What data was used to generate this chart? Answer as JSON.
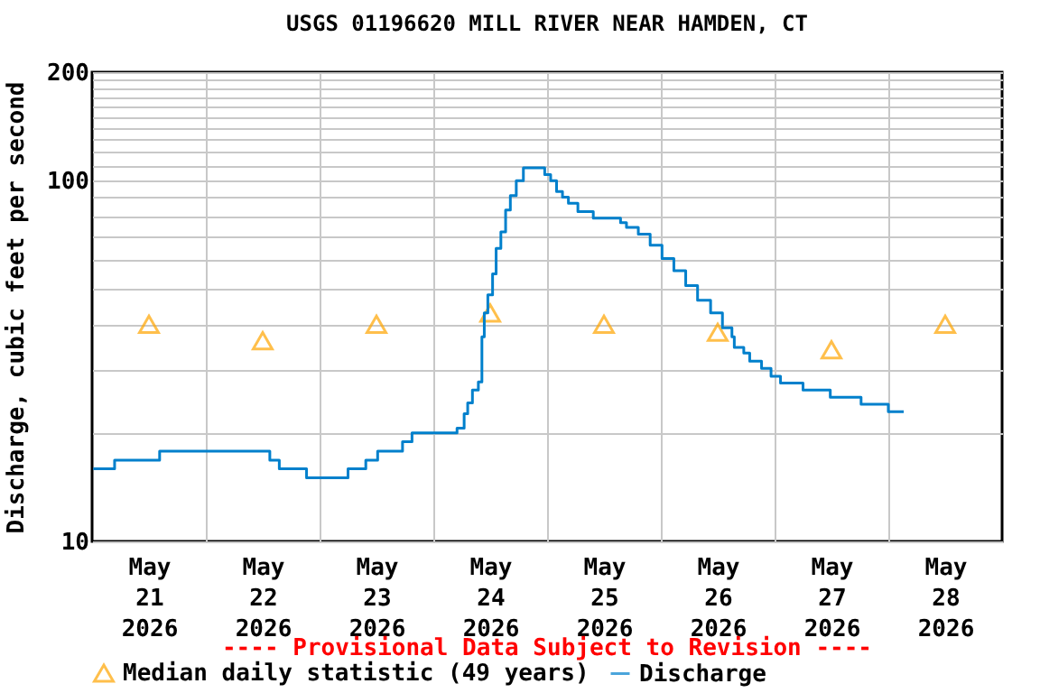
{
  "chart_data": {
    "type": "step",
    "title": "USGS 01196620 MILL RIVER NEAR HAMDEN, CT",
    "ylabel": "Discharge, cubic feet per second",
    "annotations": [
      "---- Provisional Data Subject to Revision ----"
    ],
    "log": "y",
    "grid": true,
    "legend": "bottom",
    "ylim": [
      10,
      200
    ],
    "yticks": [
      10,
      {
        "value": 20,
        "label": null
      },
      {
        "value": 30,
        "label": null
      },
      {
        "value": 40,
        "label": null
      },
      {
        "value": 50,
        "label": null
      },
      {
        "value": 60,
        "label": null
      },
      {
        "value": 70,
        "label": null
      },
      {
        "value": 80,
        "label": null
      },
      {
        "value": 90,
        "label": null
      },
      100,
      {
        "value": 110,
        "label": null
      },
      {
        "value": 120,
        "label": null
      },
      {
        "value": 130,
        "label": null
      },
      {
        "value": 140,
        "label": null
      },
      {
        "value": 150,
        "label": null
      },
      {
        "value": 160,
        "label": null
      },
      {
        "value": 170,
        "label": null
      },
      {
        "value": 180,
        "label": null
      },
      {
        "value": 190,
        "label": null
      },
      200
    ],
    "xlim": [
      "2026-05-21T00:00",
      "2026-05-29T00:00"
    ],
    "xticks": [
      {
        "value": "2026-05-21T12:00",
        "label": "May 21 2026"
      },
      {
        "value": "2026-05-22T00:00",
        "label": null
      },
      {
        "value": "2026-05-22T12:00",
        "label": "May 22 2026"
      },
      {
        "value": "2026-05-23T00:00",
        "label": null
      },
      {
        "value": "2026-05-23T12:00",
        "label": "May 23 2026"
      },
      {
        "value": "2026-05-24T00:00",
        "label": null
      },
      {
        "value": "2026-05-24T12:00",
        "label": "May 24 2026"
      },
      {
        "value": "2026-05-25T00:00",
        "label": null
      },
      {
        "value": "2026-05-25T12:00",
        "label": "May 25 2026"
      },
      {
        "value": "2026-05-26T00:00",
        "label": null
      },
      {
        "value": "2026-05-26T12:00",
        "label": "May 26 2026"
      },
      {
        "value": "2026-05-27T00:00",
        "label": null
      },
      {
        "value": "2026-05-27T12:00",
        "label": "May 27 2026"
      },
      {
        "value": "2026-05-28T00:00",
        "label": null
      },
      {
        "value": "2026-05-28T12:00",
        "label": "May 28 2026"
      }
    ],
    "series": [
      {
        "name": "Median daily statistic (49 years)",
        "type": "scatter",
        "marker": "triangle",
        "color": "#ffa500",
        "x": [
          "2026-05-21T12:00",
          "2026-05-22T12:00",
          "2026-05-23T12:00",
          "2026-05-24T12:00",
          "2026-05-25T12:00",
          "2026-05-26T12:00",
          "2026-05-27T12:00",
          "2026-05-28T12:00"
        ],
        "values": [
          40,
          36,
          40,
          43,
          40,
          38,
          34,
          40
        ]
      },
      {
        "name": "Discharge",
        "type": "step",
        "color": "#0080cc",
        "x": [
          "2026-05-21T00:15",
          "2026-05-21T04:45",
          "2026-05-21T14:15",
          "2026-05-22T13:30",
          "2026-05-22T15:30",
          "2026-05-22T21:15",
          "2026-05-23T06:00",
          "2026-05-23T09:45",
          "2026-05-23T12:15",
          "2026-05-23T17:30",
          "2026-05-23T19:30",
          "2026-05-24T05:00",
          "2026-05-24T06:30",
          "2026-05-24T07:15",
          "2026-05-24T08:15",
          "2026-05-24T09:30",
          "2026-05-24T10:15",
          "2026-05-24T10:45",
          "2026-05-24T11:30",
          "2026-05-24T12:30",
          "2026-05-24T13:15",
          "2026-05-24T14:15",
          "2026-05-24T15:15",
          "2026-05-24T16:15",
          "2026-05-24T17:30",
          "2026-05-24T19:00",
          "2026-05-24T22:15",
          "2026-05-24T23:30",
          "2026-05-25T00:45",
          "2026-05-25T02:00",
          "2026-05-25T03:15",
          "2026-05-25T04:30",
          "2026-05-25T06:30",
          "2026-05-25T09:45",
          "2026-05-25T15:30",
          "2026-05-25T16:45",
          "2026-05-25T19:15",
          "2026-05-25T21:45",
          "2026-05-26T00:15",
          "2026-05-26T02:45",
          "2026-05-26T05:15",
          "2026-05-26T07:45",
          "2026-05-26T10:30",
          "2026-05-26T13:00",
          "2026-05-26T15:00",
          "2026-05-26T15:30",
          "2026-05-26T17:30",
          "2026-05-26T18:45",
          "2026-05-26T21:15",
          "2026-05-26T23:15",
          "2026-05-27T01:15",
          "2026-05-27T06:00",
          "2026-05-27T11:45",
          "2026-05-27T18:15",
          "2026-05-28T00:00",
          "2026-05-28T03:15"
        ],
        "values": [
          15.9,
          16.8,
          17.8,
          16.8,
          15.9,
          15.0,
          15.9,
          16.8,
          17.8,
          18.9,
          20.0,
          20.6,
          22.6,
          24.2,
          26.3,
          27.7,
          36.9,
          43.0,
          48.3,
          55.2,
          64.9,
          72.1,
          82.9,
          91.0,
          100,
          108.6,
          108.6,
          104,
          100,
          93.4,
          90,
          86.6,
          82.1,
          78.8,
          76.5,
          74.2,
          71.1,
          66.3,
          60.9,
          56.3,
          51.2,
          46.6,
          43.0,
          39.1,
          36.9,
          34.5,
          33.3,
          31.6,
          30.2,
          28.7,
          27.5,
          26.3,
          25.1,
          24.0,
          22.9,
          22.9
        ]
      }
    ]
  }
}
